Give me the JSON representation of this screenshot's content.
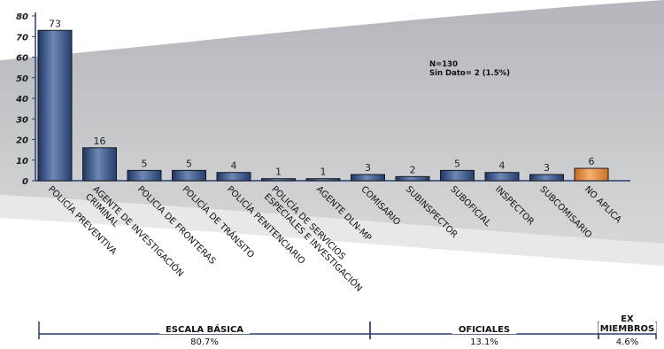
{
  "chart_data": {
    "type": "bar",
    "title": "",
    "xlabel": "",
    "ylabel": "",
    "ylim": [
      0,
      80
    ],
    "yticks": [
      0,
      10,
      20,
      30,
      40,
      50,
      60,
      70,
      80
    ],
    "grid": false,
    "categories": [
      "POLICÍA PREVENTIVA",
      "AGENTE DE INVESTIGACIÓN CRIMINAL",
      "POLICIA DE FRONTERAS",
      "POLICÍA DE TRÁNSITO",
      "POLICÍA PENITENCIARIO",
      "POLICÍA DE SERVICIOS ESPECIALES E INVESTIGACIÓN",
      "AGENTE DLN-MP",
      "COMISARIO",
      "SUBINSPECTOR",
      "SUBOFICIAL",
      "INSPECTOR",
      "SUBCOMISARIO",
      "NO APLICA"
    ],
    "values": [
      73,
      16,
      5,
      5,
      4,
      1,
      1,
      3,
      2,
      5,
      4,
      3,
      6
    ],
    "bar_colors": [
      "#2f4a7a",
      "#2f4a7a",
      "#2f4a7a",
      "#2f4a7a",
      "#2f4a7a",
      "#2f4a7a",
      "#2f4a7a",
      "#2f4a7a",
      "#2f4a7a",
      "#2f4a7a",
      "#2f4a7a",
      "#2f4a7a",
      "#e89040"
    ],
    "annotations": [
      "N=130",
      "Sin Dato= 2 (1.5%)"
    ],
    "groups": [
      {
        "name": "ESCALA BÁSICA",
        "percent": "80.7%",
        "from": 0,
        "to": 6
      },
      {
        "name": "OFICIALES",
        "percent": "13.1%",
        "from": 7,
        "to": 11
      },
      {
        "name": "EX MIEMBROS",
        "percent": "4.6%",
        "from": 12,
        "to": 12
      }
    ],
    "colors": {
      "axis": "#2a3f6e",
      "bracket": "#2a3f6e"
    }
  }
}
